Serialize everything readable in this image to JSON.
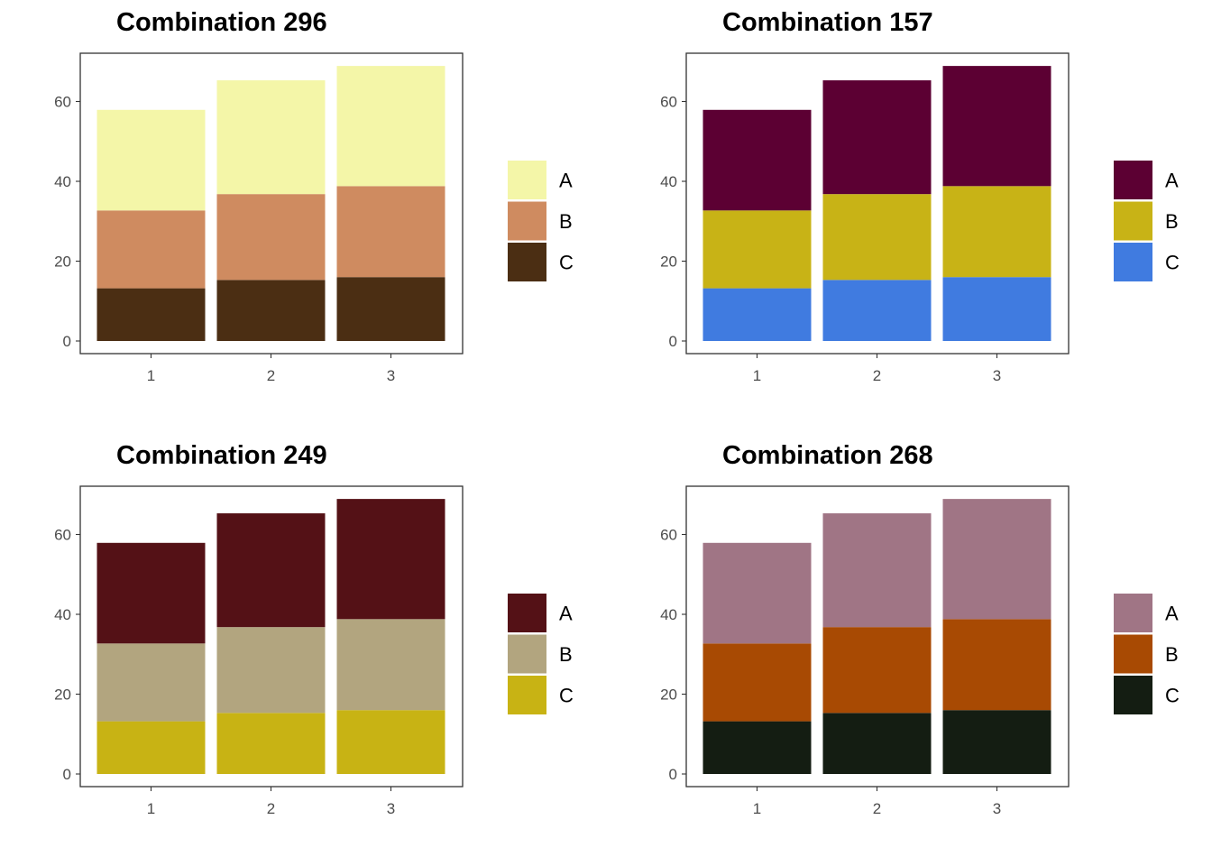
{
  "chart_data": [
    {
      "type": "bar",
      "stacked": true,
      "title": "Combination 296",
      "categories": [
        "1",
        "2",
        "3"
      ],
      "series": [
        {
          "name": "A",
          "values": [
            25.2,
            28.5,
            30.1
          ],
          "color": "#F4F6A8"
        },
        {
          "name": "B",
          "values": [
            19.5,
            21.5,
            22.8
          ],
          "color": "#CF8B60"
        },
        {
          "name": "C",
          "values": [
            13.2,
            15.3,
            16.0
          ],
          "color": "#4B2E13"
        }
      ],
      "ylim": [
        0,
        72
      ],
      "yticks": [
        "0",
        "20",
        "40",
        "60"
      ],
      "xlabel": "",
      "ylabel": "",
      "legend": "right",
      "grid": false
    },
    {
      "type": "bar",
      "stacked": true,
      "title": "Combination 157",
      "categories": [
        "1",
        "2",
        "3"
      ],
      "series": [
        {
          "name": "A",
          "values": [
            25.2,
            28.5,
            30.1
          ],
          "color": "#5C0033"
        },
        {
          "name": "B",
          "values": [
            19.5,
            21.5,
            22.8
          ],
          "color": "#C8B316"
        },
        {
          "name": "C",
          "values": [
            13.2,
            15.3,
            16.0
          ],
          "color": "#407BE0"
        }
      ],
      "ylim": [
        0,
        72
      ],
      "yticks": [
        "0",
        "20",
        "40",
        "60"
      ],
      "xlabel": "",
      "ylabel": "",
      "legend": "right",
      "grid": false
    },
    {
      "type": "bar",
      "stacked": true,
      "title": "Combination 249",
      "categories": [
        "1",
        "2",
        "3"
      ],
      "series": [
        {
          "name": "A",
          "values": [
            25.2,
            28.5,
            30.1
          ],
          "color": "#541116"
        },
        {
          "name": "B",
          "values": [
            19.5,
            21.5,
            22.8
          ],
          "color": "#B2A57F"
        },
        {
          "name": "C",
          "values": [
            13.2,
            15.3,
            16.0
          ],
          "color": "#C8B314"
        }
      ],
      "ylim": [
        0,
        72
      ],
      "yticks": [
        "0",
        "20",
        "40",
        "60"
      ],
      "xlabel": "",
      "ylabel": "",
      "legend": "right",
      "grid": false
    },
    {
      "type": "bar",
      "stacked": true,
      "title": "Combination 268",
      "categories": [
        "1",
        "2",
        "3"
      ],
      "series": [
        {
          "name": "A",
          "values": [
            25.2,
            28.5,
            30.1
          ],
          "color": "#A07585"
        },
        {
          "name": "B",
          "values": [
            19.5,
            21.5,
            22.8
          ],
          "color": "#A84A03"
        },
        {
          "name": "C",
          "values": [
            13.2,
            15.3,
            16.0
          ],
          "color": "#141D12"
        }
      ],
      "ylim": [
        0,
        72
      ],
      "yticks": [
        "0",
        "20",
        "40",
        "60"
      ],
      "xlabel": "",
      "ylabel": "",
      "legend": "right",
      "grid": false
    }
  ]
}
